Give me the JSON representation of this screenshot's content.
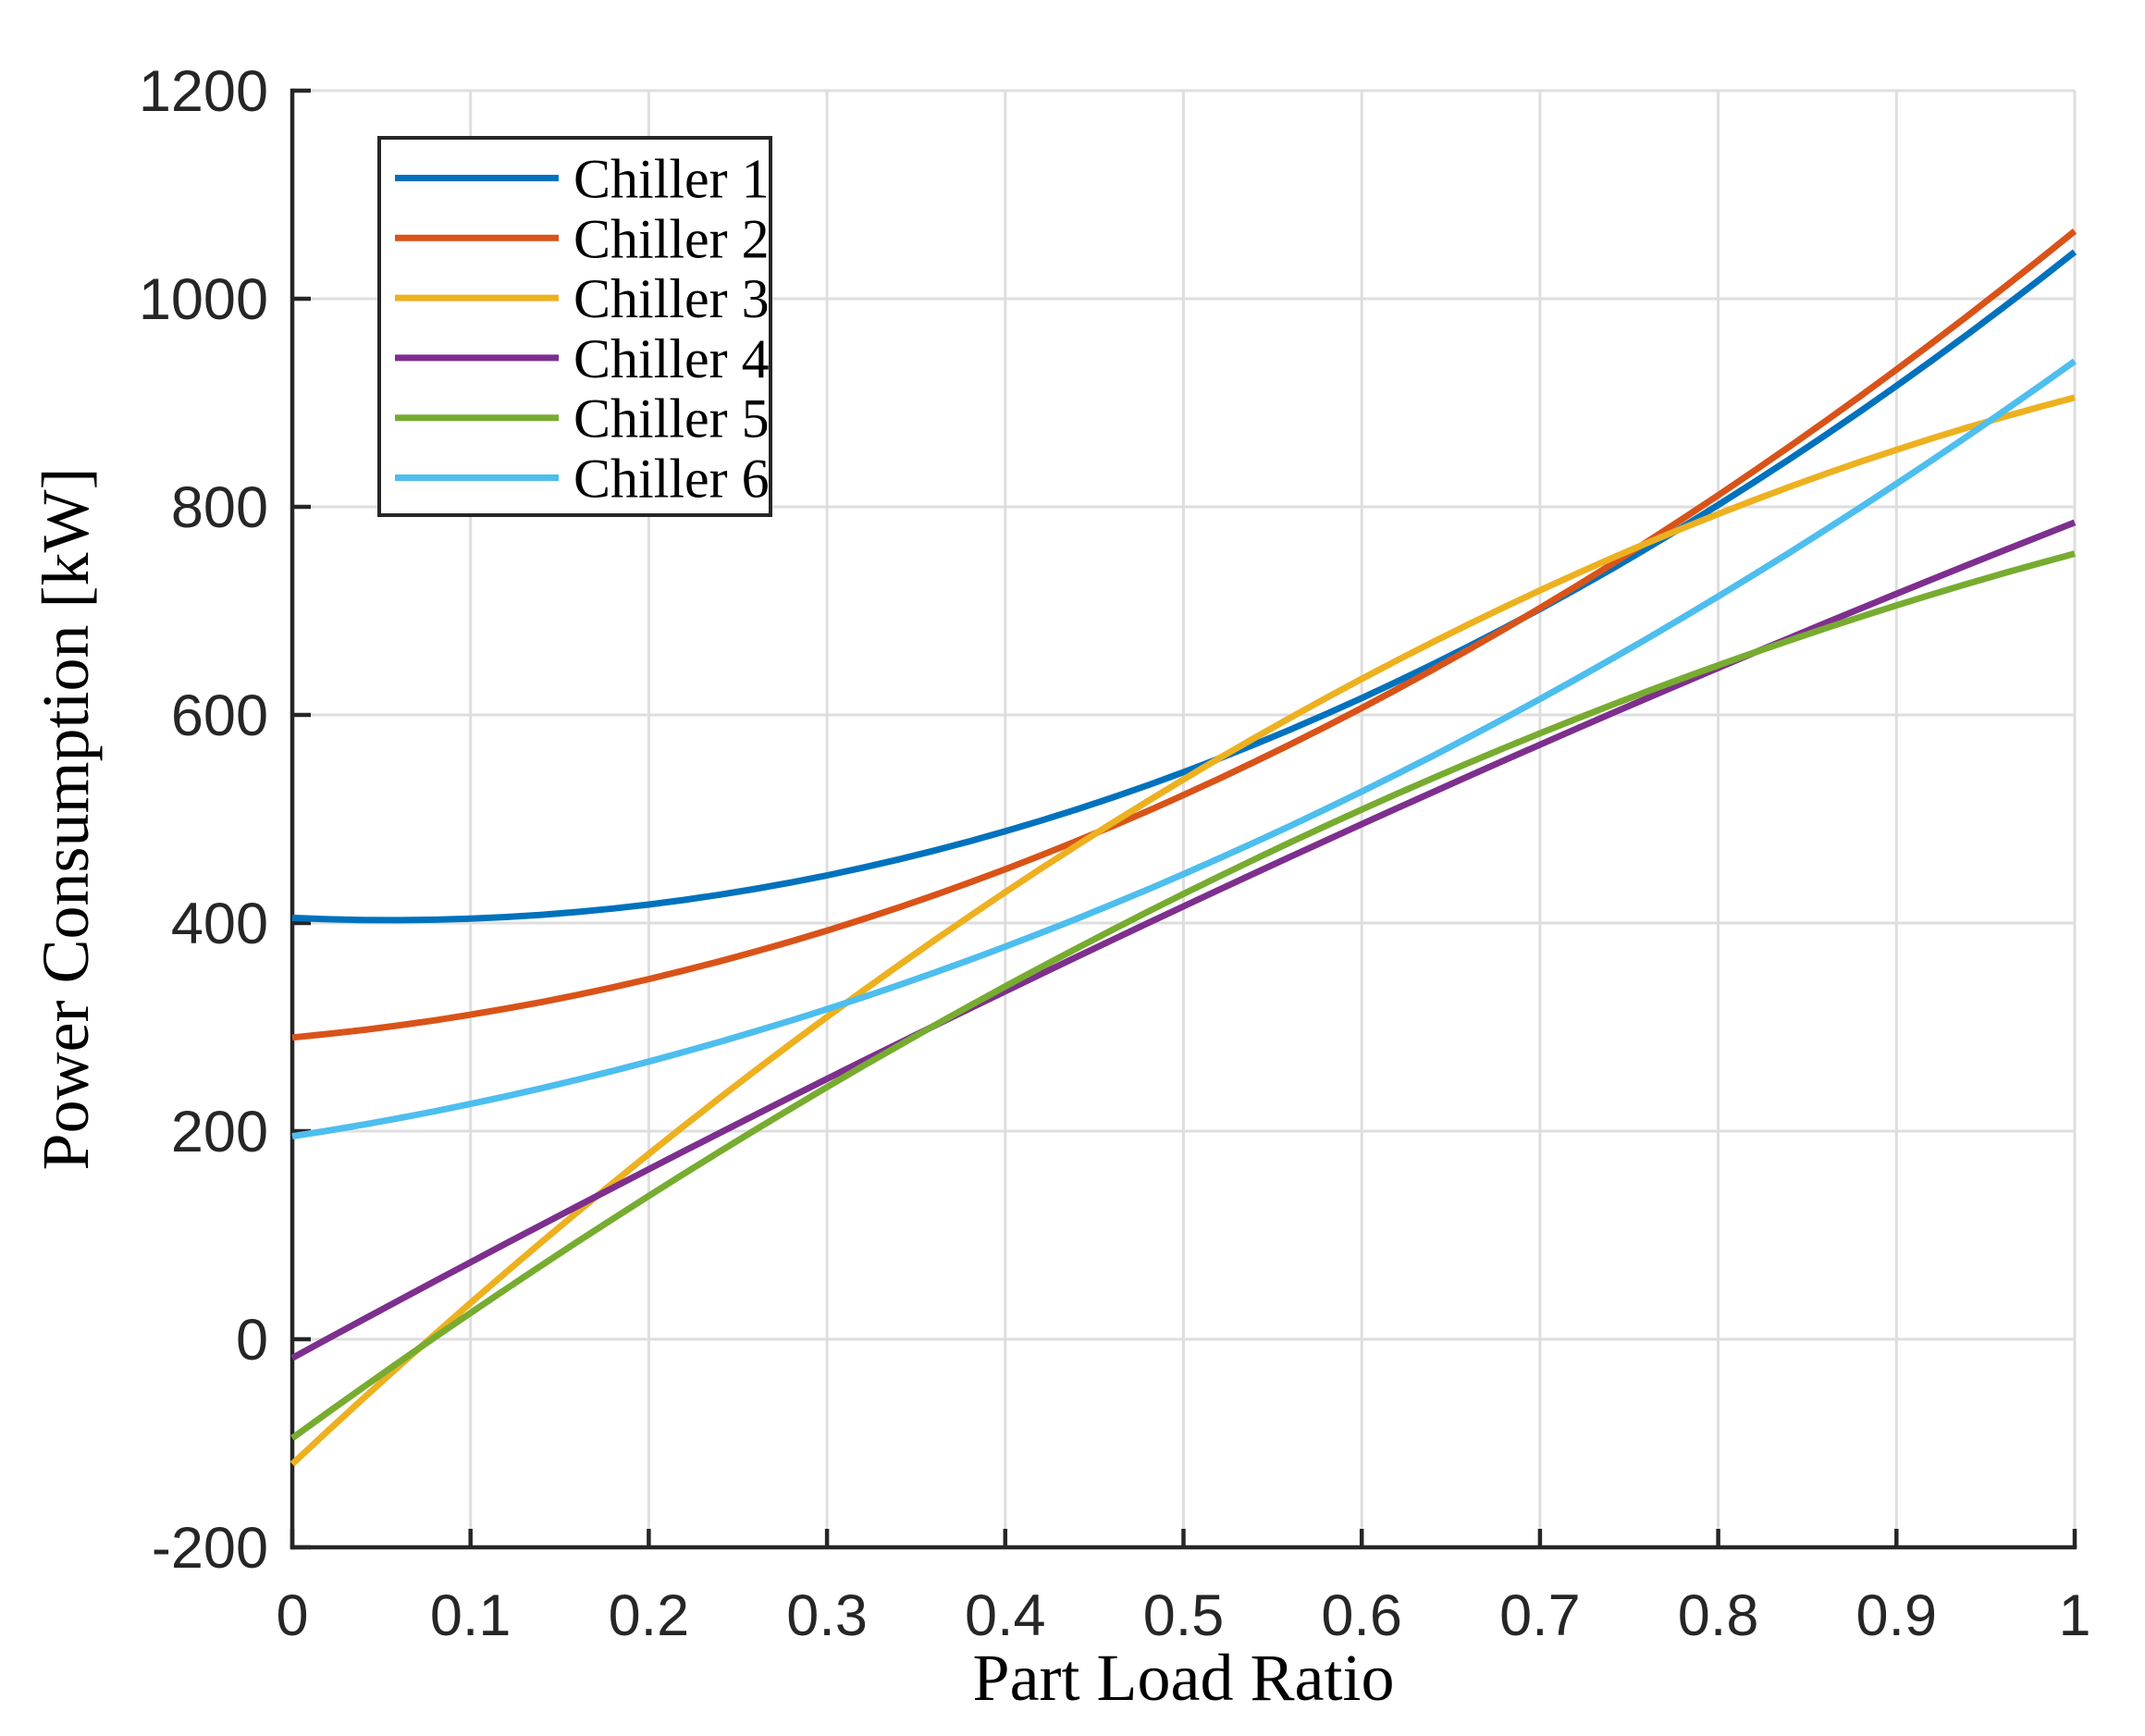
{
  "figure": {
    "background": "#FFFFFF",
    "axis_color": "#262626",
    "grid_color": "#DEDEDE",
    "legend_border_color": "#262626",
    "legend_background": "#FFFFFF"
  },
  "chart_data": {
    "type": "line",
    "title": "",
    "xlabel": "Part Load Ratio",
    "ylabel": "Power Consumption [kW]",
    "xlim": [
      0,
      1
    ],
    "ylim": [
      -200,
      1200
    ],
    "x_ticks": [
      0,
      0.1,
      0.2,
      0.3,
      0.4,
      0.5,
      0.6,
      0.7,
      0.8,
      0.9,
      1
    ],
    "y_ticks": [
      -200,
      0,
      200,
      400,
      600,
      800,
      1000,
      1200
    ],
    "grid": true,
    "legend_position": "northwest",
    "x": [
      0,
      0.1,
      0.2,
      0.3,
      0.4,
      0.5,
      0.6,
      0.7,
      0.8,
      0.9,
      1
    ],
    "series": [
      {
        "name": "Chiller 1",
        "color": "#0072BD",
        "model": {
          "type": "quadratic",
          "coefficients": [
            405,
            -80,
            720
          ]
        },
        "values": [
          405,
          404.2,
          417.8,
          445.8,
          488.2,
          545,
          616.2,
          701.8,
          801.8,
          916.2,
          1045
        ]
      },
      {
        "name": "Chiller 2",
        "color": "#D95319",
        "model": {
          "type": "quadratic",
          "coefficients": [
            290,
            157,
            618
          ]
        },
        "values": [
          290,
          311.9,
          346.1,
          392.7,
          451.7,
          523,
          606.7,
          702.7,
          811.1,
          931.9,
          1065
        ]
      },
      {
        "name": "Chiller 3",
        "color": "#EDB120",
        "model": {
          "type": "quadratic",
          "coefficients": [
            -120,
            1607,
            -582
          ]
        },
        "values": [
          -120,
          34.9,
          178.1,
          309.7,
          429.7,
          538,
          634.7,
          719.7,
          793.1,
          854.9,
          905
        ]
      },
      {
        "name": "Chiller 4",
        "color": "#7E2F8E",
        "model": {
          "type": "quadratic",
          "coefficients": [
            -18,
            933,
            -130
          ]
        },
        "values": [
          -18,
          74,
          163.4,
          250.2,
          334.4,
          416,
          495,
          571.4,
          645.2,
          716.4,
          785
        ]
      },
      {
        "name": "Chiller 5",
        "color": "#77AC30",
        "model": {
          "type": "quadratic",
          "coefficients": [
            -95,
            1242,
            -392
          ]
        },
        "values": [
          -95,
          25.3,
          137.7,
          242.3,
          339.1,
          428,
          509.1,
          582.3,
          647.7,
          705.3,
          755
        ]
      },
      {
        "name": "Chiller 6",
        "color": "#4DBEEE",
        "model": {
          "type": "quadratic",
          "coefficients": [
            195,
            263,
            482
          ]
        },
        "values": [
          195,
          226.1,
          266.9,
          317.3,
          377.3,
          447,
          526.3,
          615.3,
          713.9,
          822.1,
          940
        ]
      }
    ]
  }
}
